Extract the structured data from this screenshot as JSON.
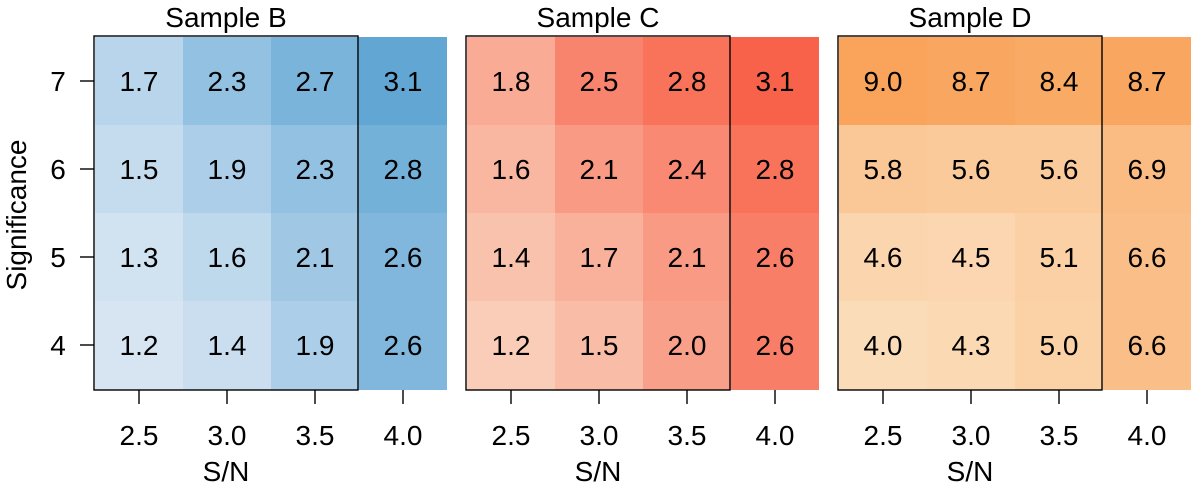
{
  "chart_data": {
    "type": "heatmap",
    "xlabel": "S/N",
    "ylabel": "Significance",
    "x": [
      2.5,
      3.0,
      3.5,
      4.0
    ],
    "x_tick_labels": [
      "2.5",
      "3.0",
      "3.5",
      "4.0"
    ],
    "y": [
      4,
      5,
      6,
      7
    ],
    "y_tick_labels": [
      "4",
      "5",
      "6",
      "7"
    ],
    "panels": [
      {
        "title": "Sample B",
        "color_low": "#d7e5f3",
        "color_high": "#62a7d4",
        "values": [
          [
            "1.7",
            "2.3",
            "2.7",
            "3.1"
          ],
          [
            "1.5",
            "1.9",
            "2.3",
            "2.8"
          ],
          [
            "1.3",
            "1.6",
            "2.1",
            "2.6"
          ],
          [
            "1.2",
            "1.4",
            "1.9",
            "2.6"
          ]
        ]
      },
      {
        "title": "Sample C",
        "color_low": "#f9cdb8",
        "color_high": "#f9624a",
        "values": [
          [
            "1.8",
            "2.5",
            "2.8",
            "3.1"
          ],
          [
            "1.6",
            "2.1",
            "2.4",
            "2.8"
          ],
          [
            "1.4",
            "1.7",
            "2.1",
            "2.6"
          ],
          [
            "1.2",
            "1.5",
            "2.0",
            "2.6"
          ]
        ]
      },
      {
        "title": "Sample D",
        "color_low": "#fbdcb9",
        "color_high": "#f9a45a",
        "values": [
          [
            "9.0",
            "8.7",
            "8.4",
            "8.7"
          ],
          [
            "5.8",
            "5.6",
            "5.6",
            "6.9"
          ],
          [
            "4.6",
            "4.5",
            "5.1",
            "6.6"
          ],
          [
            "4.0",
            "4.3",
            "5.0",
            "6.6"
          ]
        ]
      }
    ]
  }
}
